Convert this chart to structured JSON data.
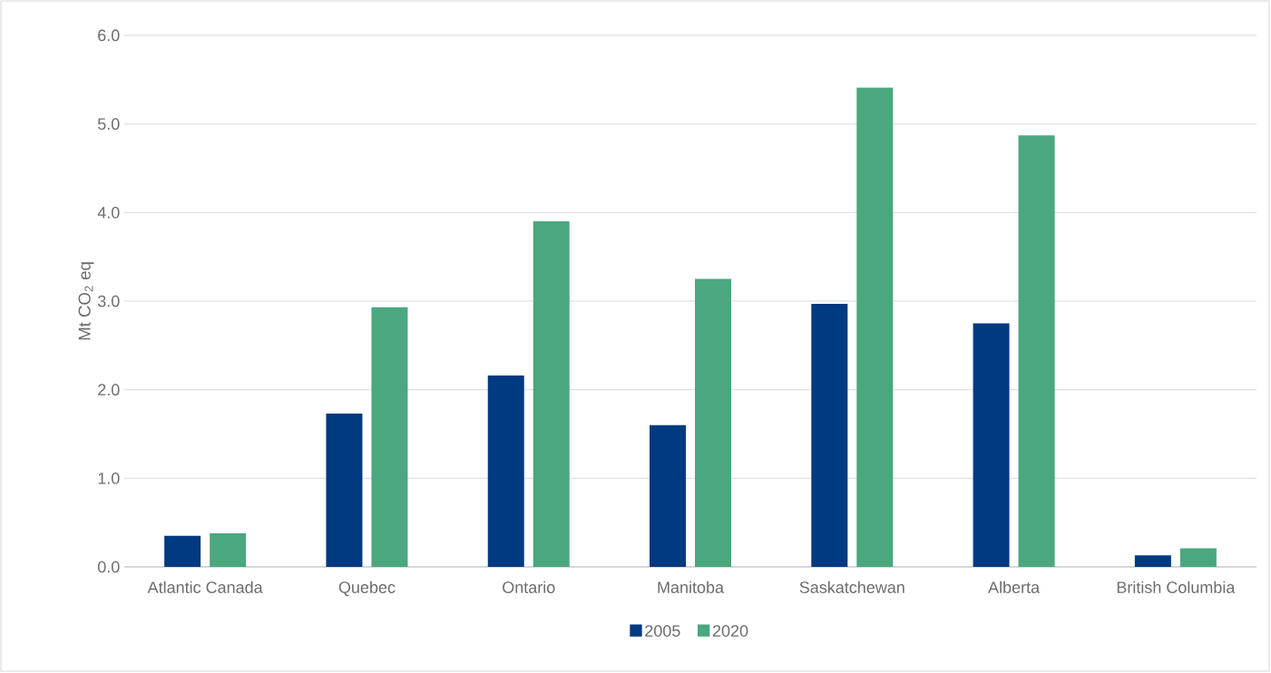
{
  "chart_data": {
    "type": "bar",
    "ylabel": "Mt CO$_{2}$ eq",
    "categories": [
      "Atlantic Canada",
      "Quebec",
      "Ontario",
      "Manitoba",
      "Saskatchewan",
      "Alberta",
      "British Columbia"
    ],
    "series": [
      {
        "name": "2005",
        "color": "#003a80",
        "values": [
          0.35,
          1.73,
          2.16,
          1.6,
          2.97,
          2.75,
          0.13
        ]
      },
      {
        "name": "2020",
        "color": "#4aa77e",
        "values": [
          0.38,
          2.93,
          3.9,
          3.25,
          5.41,
          4.87,
          0.21
        ]
      }
    ],
    "ylim": [
      0,
      6
    ],
    "yticks": [
      {
        "value": 0,
        "label": "0.0"
      },
      {
        "value": 1,
        "label": "1.0"
      },
      {
        "value": 2,
        "label": "2.0"
      },
      {
        "value": 3,
        "label": "3.0"
      },
      {
        "value": 4,
        "label": "4.0"
      },
      {
        "value": 5,
        "label": "5.0"
      },
      {
        "value": 6,
        "label": "6.0"
      }
    ],
    "grid": "y",
    "legend": "bottom"
  }
}
